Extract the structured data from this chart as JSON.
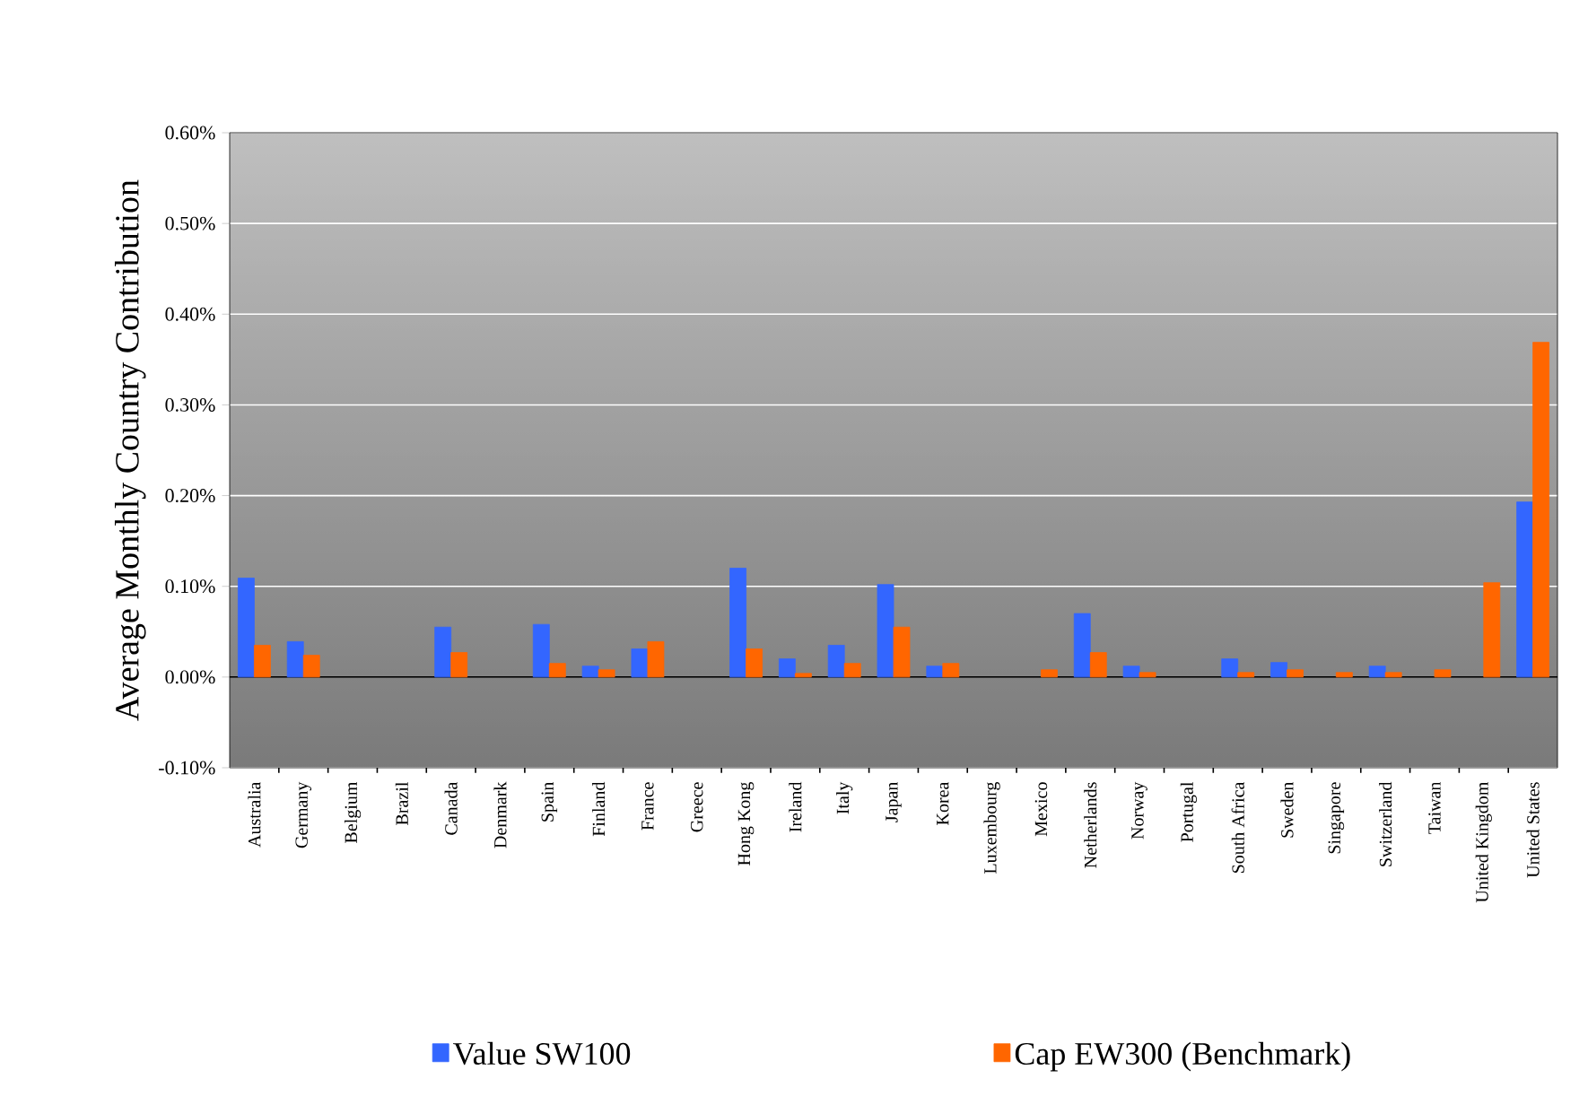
{
  "chart_data": {
    "type": "bar",
    "ylabel": "Average Monthly Country Contribution",
    "categories": [
      "Australia",
      "Germany",
      "Belgium",
      "Brazil",
      "Canada",
      "Denmark",
      "Spain",
      "Finland",
      "France",
      "Greece",
      "Hong Kong",
      "Ireland",
      "Italy",
      "Japan",
      "Korea",
      "Luxembourg",
      "Mexico",
      "Netherlands",
      "Norway",
      "Portugal",
      "South Africa",
      "Sweden",
      "Singapore",
      "Switzerland",
      "Taiwan",
      "United Kingdom",
      "United States"
    ],
    "series": [
      {
        "name": "Value SW100",
        "color": "#3366ff",
        "values": [
          0.109,
          0.039,
          null,
          null,
          0.055,
          null,
          0.058,
          0.012,
          0.031,
          null,
          0.12,
          0.02,
          0.035,
          0.102,
          0.012,
          null,
          null,
          0.07,
          0.012,
          null,
          0.02,
          0.016,
          null,
          0.012,
          null,
          null,
          0.193
        ]
      },
      {
        "name": "Cap EW300 (Benchmark)",
        "color": "#ff6600",
        "values": [
          0.035,
          0.024,
          null,
          null,
          0.027,
          null,
          0.015,
          0.008,
          0.039,
          null,
          0.031,
          0.004,
          0.015,
          0.055,
          0.015,
          null,
          0.008,
          0.027,
          0.005,
          null,
          0.005,
          0.008,
          0.005,
          0.005,
          0.008,
          0.104,
          0.369
        ]
      }
    ],
    "ylim": [
      -0.1,
      0.6
    ],
    "yticks": [
      {
        "value": -0.1,
        "label": "-0.10%"
      },
      {
        "value": 0,
        "label": "0.00%"
      },
      {
        "value": 0.1,
        "label": "0.10%"
      },
      {
        "value": 0.2,
        "label": "0.20%"
      },
      {
        "value": 0.3,
        "label": "0.30%"
      },
      {
        "value": 0.4,
        "label": "0.40%"
      },
      {
        "value": 0.5,
        "label": "0.50%"
      },
      {
        "value": 0.6,
        "label": "0.60%"
      }
    ],
    "grid": "y",
    "legend": "bottom"
  }
}
